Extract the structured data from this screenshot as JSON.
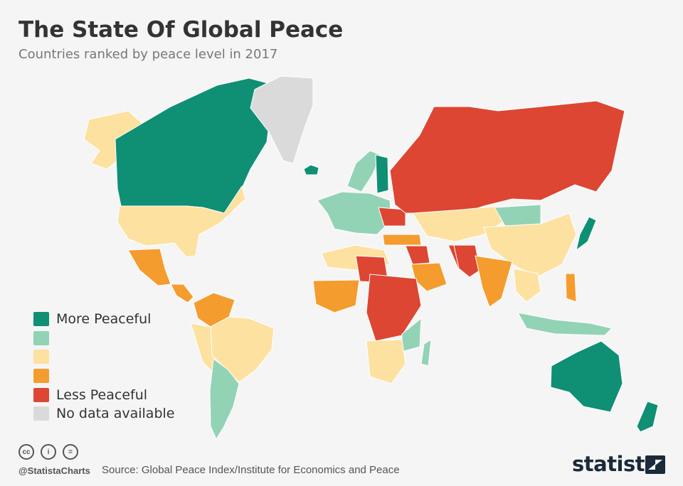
{
  "title": "The State Of Global Peace",
  "subtitle": "Countries ranked by peace level in 2017",
  "colors": {
    "very_high": "#0f8f74",
    "high": "#92d3b5",
    "medium": "#fde1a0",
    "low": "#f49c2e",
    "very_low": "#dd4632",
    "no_data": "#dadada",
    "background": "#f5f5f5"
  },
  "legend": [
    {
      "label": "More Peaceful",
      "level": "very_high"
    },
    {
      "label": "",
      "level": "high"
    },
    {
      "label": "",
      "level": "medium"
    },
    {
      "label": "",
      "level": "low"
    },
    {
      "label": "Less Peaceful",
      "level": "very_low"
    },
    {
      "label": "No data available",
      "level": "no_data"
    }
  ],
  "regions": [
    {
      "name": "canada",
      "level": "very_high"
    },
    {
      "name": "alaska",
      "level": "medium"
    },
    {
      "name": "usa",
      "level": "medium"
    },
    {
      "name": "greenland",
      "level": "no_data"
    },
    {
      "name": "iceland",
      "level": "very_high"
    },
    {
      "name": "mexico",
      "level": "low"
    },
    {
      "name": "central-america",
      "level": "low"
    },
    {
      "name": "colombia-venezuela",
      "level": "low"
    },
    {
      "name": "brazil",
      "level": "medium"
    },
    {
      "name": "peru-bolivia",
      "level": "medium"
    },
    {
      "name": "chile-argentina",
      "level": "high"
    },
    {
      "name": "scandinavia",
      "level": "high"
    },
    {
      "name": "finland",
      "level": "very_high"
    },
    {
      "name": "western-europe",
      "level": "high"
    },
    {
      "name": "ukraine",
      "level": "very_low"
    },
    {
      "name": "russia",
      "level": "very_low"
    },
    {
      "name": "kazakhstan-central-asia",
      "level": "medium"
    },
    {
      "name": "mongolia",
      "level": "high"
    },
    {
      "name": "china",
      "level": "medium"
    },
    {
      "name": "japan",
      "level": "very_high"
    },
    {
      "name": "turkey",
      "level": "low"
    },
    {
      "name": "middle-east",
      "level": "very_low"
    },
    {
      "name": "saudi-arabia",
      "level": "low"
    },
    {
      "name": "afghanistan-pakistan",
      "level": "very_low"
    },
    {
      "name": "india",
      "level": "low"
    },
    {
      "name": "southeast-asia",
      "level": "medium"
    },
    {
      "name": "philippines",
      "level": "low"
    },
    {
      "name": "indonesia",
      "level": "high"
    },
    {
      "name": "north-africa",
      "level": "medium"
    },
    {
      "name": "libya",
      "level": "very_low"
    },
    {
      "name": "sahel-west-africa",
      "level": "low"
    },
    {
      "name": "sudan-central-africa",
      "level": "very_low"
    },
    {
      "name": "east-africa",
      "level": "high"
    },
    {
      "name": "southern-africa",
      "level": "medium"
    },
    {
      "name": "madagascar",
      "level": "high"
    },
    {
      "name": "australia",
      "level": "very_high"
    },
    {
      "name": "new-zealand",
      "level": "very_high"
    }
  ],
  "footer": {
    "license_icons": [
      "cc",
      "by",
      "nd"
    ],
    "license_icon_text": [
      "cc",
      "i",
      "="
    ],
    "handle": "@StatistaCharts",
    "source": "Source: Global Peace Index/Institute for Economics and Peace",
    "brand": "statista"
  }
}
